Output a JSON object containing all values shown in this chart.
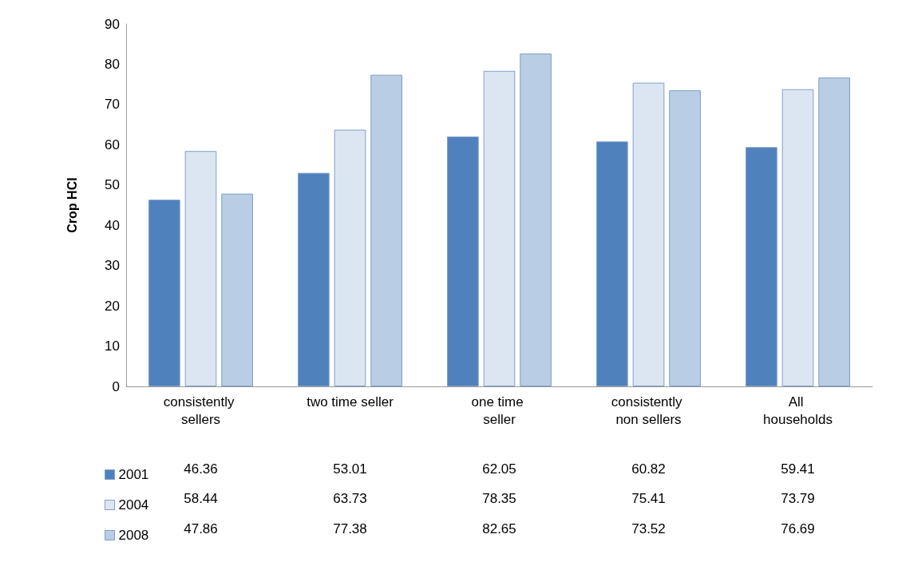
{
  "chart_data": {
    "type": "bar",
    "ylabel": "Crop HCI",
    "categories": [
      "consistently sellers",
      "two time seller",
      "one time seller",
      "consistently non sellers",
      "All households"
    ],
    "series": [
      {
        "name": "2001",
        "color": "#4f81bd",
        "values": [
          46.36,
          53.01,
          62.05,
          60.82,
          59.41
        ]
      },
      {
        "name": "2004",
        "color": "#dce6f2",
        "values": [
          58.44,
          63.73,
          78.35,
          75.41,
          73.79
        ]
      },
      {
        "name": "2008",
        "color": "#b9cde5",
        "values": [
          47.86,
          77.38,
          82.65,
          73.52,
          76.69
        ]
      }
    ],
    "ylim": [
      0,
      90
    ],
    "yticks": [
      0,
      10,
      20,
      30,
      40,
      50,
      60,
      70,
      80,
      90
    ],
    "grid": false,
    "legend": "bottom left",
    "data_labels": true
  }
}
